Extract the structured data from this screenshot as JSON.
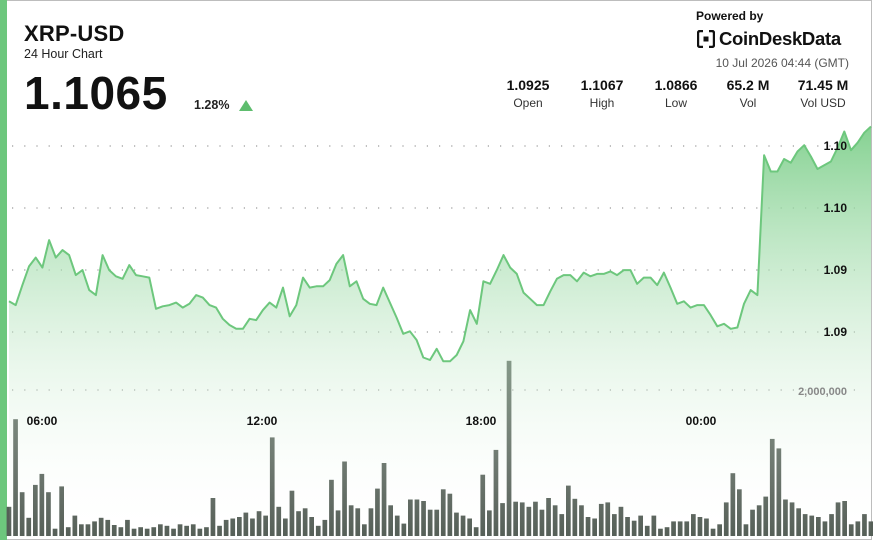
{
  "header": {
    "title": "XRP-USD",
    "subtitle": "24 Hour Chart",
    "price": "1.1065",
    "change": "1.28%",
    "powered_by": "Powered by",
    "brand": "CoinDeskData",
    "timestamp": "10 Jul 2026 04:44 (GMT)"
  },
  "stats": [
    {
      "value": "1.0925",
      "label": "Open"
    },
    {
      "value": "1.1067",
      "label": "High"
    },
    {
      "value": "1.0866",
      "label": "Low"
    },
    {
      "value": "65.2 M",
      "label": "Vol"
    },
    {
      "value": "71.45 M",
      "label": "Vol USD"
    }
  ],
  "colors": {
    "accent": "#6dc77d",
    "line": "#6dc77d",
    "fill_top": "#7fcf8c",
    "volume_bar": "#555f57",
    "arrow_up": "#5ebd6e"
  },
  "chart_data": [
    {
      "type": "area",
      "x_tick_labels": [
        "06:00",
        "12:00",
        "18:00",
        "00:00"
      ],
      "y_tick_labels": [
        "1.10",
        "1.10",
        "1.09",
        "1.09"
      ],
      "y_range": [
        1.0866,
        1.1067
      ],
      "grid": "dotted horizontal",
      "series": [
        {
          "values": [
            1.0925,
            1.0922,
            1.0938,
            1.0953,
            1.096,
            1.0952,
            1.0974,
            1.096,
            1.0966,
            1.0962,
            1.0946,
            1.095,
            1.0934,
            1.093,
            1.0962,
            1.095,
            1.0945,
            1.0943,
            1.0954,
            1.0946,
            1.0945,
            1.0944,
            1.0919,
            1.0921,
            1.0922,
            1.0924,
            1.092,
            1.0923,
            1.093,
            1.0928,
            1.0922,
            1.092,
            1.0911,
            1.0906,
            1.0903,
            1.0903,
            1.0911,
            1.091,
            1.0918,
            1.0924,
            1.092,
            1.0936,
            1.0913,
            1.0922,
            1.0944,
            1.0936,
            1.0937,
            1.0937,
            1.0942,
            1.0955,
            1.0962,
            1.0937,
            1.0941,
            1.0927,
            1.0923,
            1.0922,
            1.0936,
            1.0924,
            1.0912,
            1.0899,
            1.0901,
            1.0894,
            1.088,
            1.0878,
            1.0887,
            1.0877,
            1.0877,
            1.0882,
            1.0893,
            1.0918,
            1.0907,
            1.0941,
            1.0939,
            1.095,
            1.0962,
            1.0952,
            1.0947,
            1.0932,
            1.0927,
            1.0922,
            1.0922,
            1.0933,
            1.0943,
            1.0946,
            1.0946,
            1.0941,
            1.0948,
            1.0945,
            1.0947,
            1.0947,
            1.0949,
            1.0946,
            1.095,
            1.095,
            1.0939,
            1.0944,
            1.0944,
            1.0938,
            1.0948,
            1.0936,
            1.0923,
            1.0925,
            1.092,
            1.0922,
            1.0922,
            1.0914,
            1.0905,
            1.0907,
            1.0903,
            1.0904,
            1.0923,
            1.0934,
            1.093,
            1.1042,
            1.1029,
            1.1029,
            1.1039,
            1.1036,
            1.1045,
            1.105,
            1.1041,
            1.1031,
            1.1034,
            1.1037,
            1.1048,
            1.1061,
            1.1046,
            1.1052,
            1.106,
            1.1065
          ]
        }
      ]
    },
    {
      "type": "bar",
      "y_tick_labels": [
        "2,000,000"
      ],
      "series": [
        {
          "name": "Volume",
          "values": [
            400000,
            1600000,
            600000,
            250000,
            700000,
            850000,
            600000,
            100000,
            680000,
            120000,
            280000,
            160000,
            160000,
            200000,
            250000,
            220000,
            150000,
            120000,
            220000,
            100000,
            120000,
            100000,
            120000,
            160000,
            140000,
            100000,
            160000,
            140000,
            160000,
            100000,
            120000,
            520000,
            140000,
            220000,
            240000,
            260000,
            320000,
            240000,
            340000,
            280000,
            1350000,
            400000,
            240000,
            620000,
            340000,
            380000,
            260000,
            140000,
            220000,
            770000,
            350000,
            1020000,
            420000,
            380000,
            160000,
            380000,
            650000,
            1000000,
            420000,
            280000,
            170000,
            500000,
            500000,
            480000,
            360000,
            360000,
            640000,
            580000,
            320000,
            280000,
            240000,
            120000,
            840000,
            350000,
            1180000,
            450000,
            2400000,
            470000,
            460000,
            400000,
            470000,
            360000,
            520000,
            420000,
            300000,
            690000,
            510000,
            420000,
            260000,
            240000,
            440000,
            460000,
            300000,
            400000,
            260000,
            210000,
            280000,
            140000,
            280000,
            100000,
            120000,
            200000,
            200000,
            200000,
            300000,
            260000,
            240000,
            100000,
            160000,
            460000,
            860000,
            640000,
            160000,
            360000,
            420000,
            540000,
            1330000,
            1200000,
            500000,
            460000,
            380000,
            300000,
            280000,
            260000,
            200000,
            300000,
            460000,
            480000,
            160000,
            200000,
            300000,
            200000
          ]
        }
      ]
    }
  ]
}
